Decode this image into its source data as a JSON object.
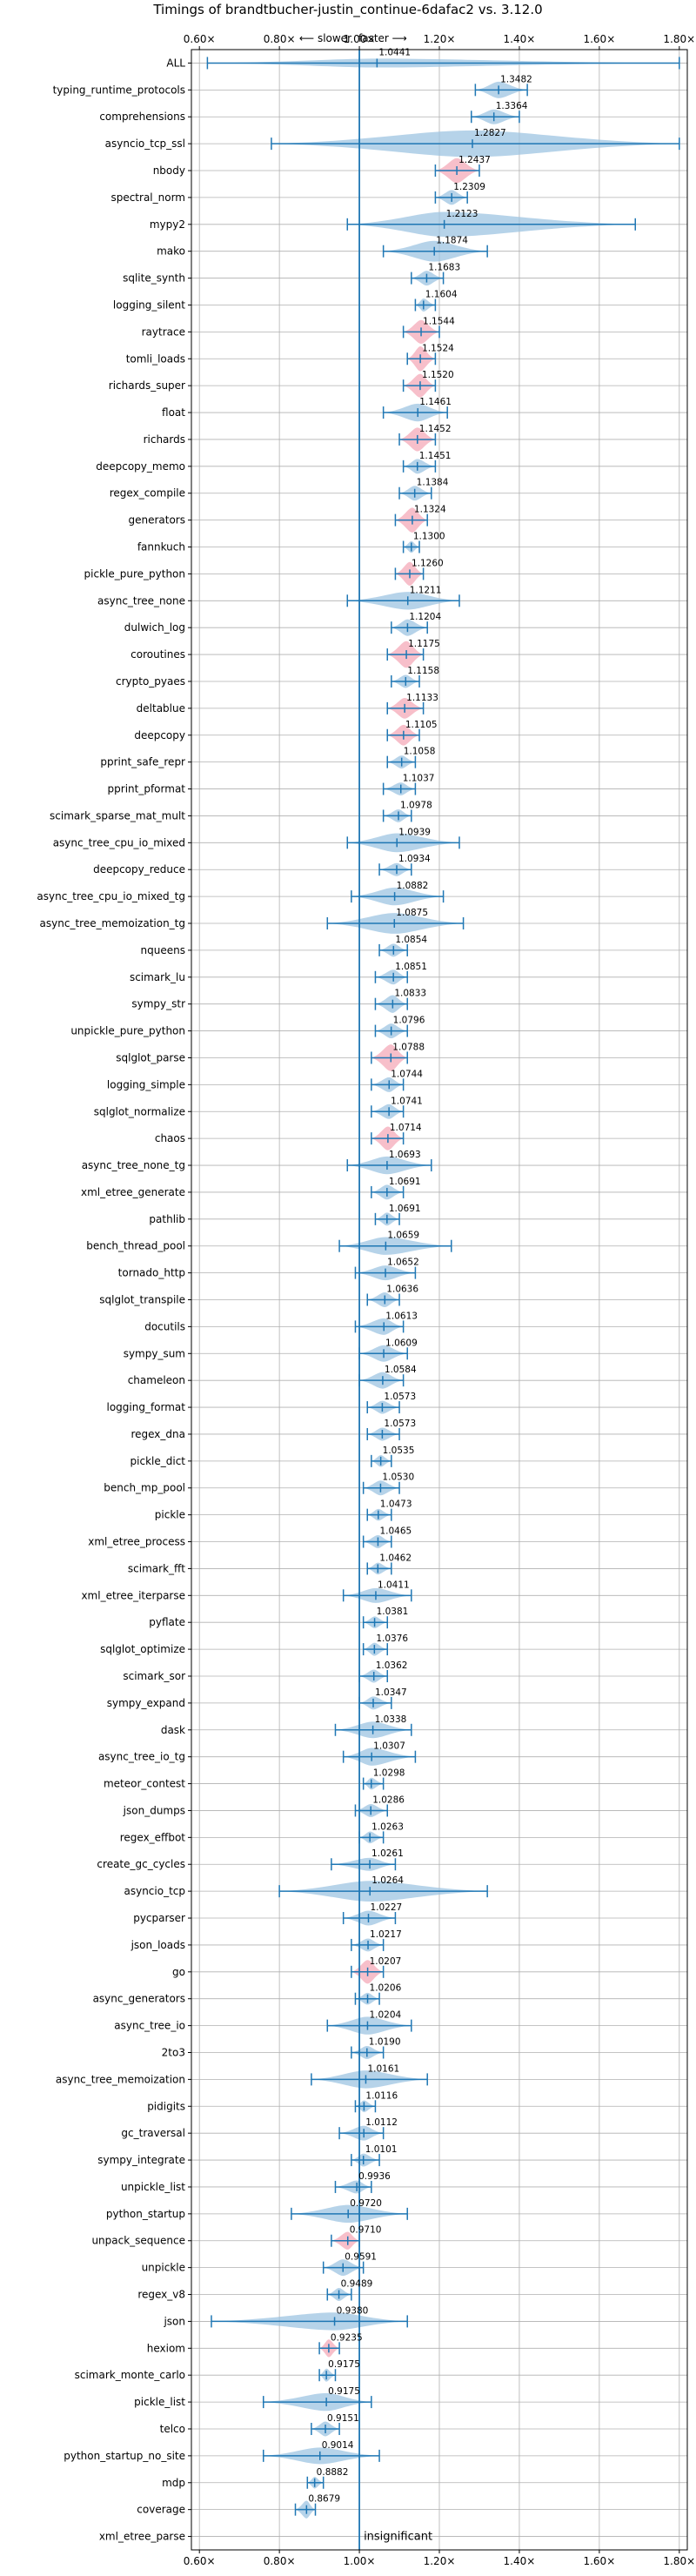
{
  "chart_data": {
    "type": "violin",
    "title": "Timings of brandtbucher-justin_continue-6dafac2 vs. 3.12.0",
    "direction_labels": {
      "slower": "⟵ slower",
      "faster": "faster ⟶"
    },
    "insignificant_label": "insignificant",
    "xlim": [
      0.58,
      1.82
    ],
    "x_ticks": [
      0.6,
      0.8,
      1.0,
      1.2,
      1.4,
      1.6,
      1.8
    ],
    "x_tick_labels": [
      "0.60×",
      "0.80×",
      "1.00×",
      "1.20×",
      "1.40×",
      "1.60×",
      "1.80×"
    ],
    "reference_line": 1.0,
    "grid": true,
    "colors": {
      "violin": "#9ec4e2",
      "significant": "#f4a9b8",
      "line": "#1f77b4",
      "grid": "#b0b0b0"
    },
    "benchmarks": [
      {
        "name": "ALL",
        "value": 1.0441,
        "lo": 0.62,
        "hi": 1.8,
        "width": 0.15,
        "sig": false
      },
      {
        "name": "typing_runtime_protocols",
        "value": 1.3482,
        "lo": 1.29,
        "hi": 1.42,
        "width": 0.28,
        "sig": false
      },
      {
        "name": "comprehensions",
        "value": 1.3364,
        "lo": 1.28,
        "hi": 1.4,
        "width": 0.25,
        "sig": false
      },
      {
        "name": "asyncio_tcp_ssl",
        "value": 1.2827,
        "lo": 0.78,
        "hi": 1.8,
        "width": 0.45,
        "sig": false
      },
      {
        "name": "nbody",
        "value": 1.2437,
        "lo": 1.19,
        "hi": 1.3,
        "width": 0.42,
        "sig": true
      },
      {
        "name": "spectral_norm",
        "value": 1.2309,
        "lo": 1.19,
        "hi": 1.27,
        "width": 0.25,
        "sig": false
      },
      {
        "name": "mypy2",
        "value": 1.2123,
        "lo": 0.97,
        "hi": 1.69,
        "width": 0.42,
        "sig": false
      },
      {
        "name": "mako",
        "value": 1.1874,
        "lo": 1.06,
        "hi": 1.32,
        "width": 0.35,
        "sig": false
      },
      {
        "name": "sqlite_synth",
        "value": 1.1683,
        "lo": 1.13,
        "hi": 1.21,
        "width": 0.25,
        "sig": false
      },
      {
        "name": "logging_silent",
        "value": 1.1604,
        "lo": 1.14,
        "hi": 1.19,
        "width": 0.22,
        "sig": false
      },
      {
        "name": "raytrace",
        "value": 1.1544,
        "lo": 1.11,
        "hi": 1.2,
        "width": 0.4,
        "sig": true
      },
      {
        "name": "tomli_loads",
        "value": 1.1524,
        "lo": 1.12,
        "hi": 1.19,
        "width": 0.42,
        "sig": true
      },
      {
        "name": "richards_super",
        "value": 1.152,
        "lo": 1.11,
        "hi": 1.19,
        "width": 0.4,
        "sig": true
      },
      {
        "name": "float",
        "value": 1.1461,
        "lo": 1.06,
        "hi": 1.22,
        "width": 0.3,
        "sig": false
      },
      {
        "name": "richards",
        "value": 1.1452,
        "lo": 1.1,
        "hi": 1.19,
        "width": 0.4,
        "sig": true
      },
      {
        "name": "deepcopy_memo",
        "value": 1.1451,
        "lo": 1.11,
        "hi": 1.19,
        "width": 0.25,
        "sig": false
      },
      {
        "name": "regex_compile",
        "value": 1.1384,
        "lo": 1.1,
        "hi": 1.18,
        "width": 0.25,
        "sig": false
      },
      {
        "name": "generators",
        "value": 1.1324,
        "lo": 1.09,
        "hi": 1.17,
        "width": 0.42,
        "sig": true
      },
      {
        "name": "fannkuch",
        "value": 1.13,
        "lo": 1.11,
        "hi": 1.15,
        "width": 0.2,
        "sig": false
      },
      {
        "name": "pickle_pure_python",
        "value": 1.126,
        "lo": 1.09,
        "hi": 1.16,
        "width": 0.4,
        "sig": true
      },
      {
        "name": "async_tree_none",
        "value": 1.1211,
        "lo": 0.97,
        "hi": 1.25,
        "width": 0.3,
        "sig": false
      },
      {
        "name": "dulwich_log",
        "value": 1.1204,
        "lo": 1.08,
        "hi": 1.17,
        "width": 0.28,
        "sig": false
      },
      {
        "name": "coroutines",
        "value": 1.1175,
        "lo": 1.07,
        "hi": 1.16,
        "width": 0.45,
        "sig": true
      },
      {
        "name": "crypto_pyaes",
        "value": 1.1158,
        "lo": 1.08,
        "hi": 1.15,
        "width": 0.22,
        "sig": false
      },
      {
        "name": "deltablue",
        "value": 1.1133,
        "lo": 1.07,
        "hi": 1.16,
        "width": 0.35,
        "sig": true
      },
      {
        "name": "deepcopy",
        "value": 1.1105,
        "lo": 1.07,
        "hi": 1.15,
        "width": 0.35,
        "sig": true
      },
      {
        "name": "pprint_safe_repr",
        "value": 1.1058,
        "lo": 1.07,
        "hi": 1.14,
        "width": 0.22,
        "sig": false
      },
      {
        "name": "pprint_pformat",
        "value": 1.1037,
        "lo": 1.06,
        "hi": 1.14,
        "width": 0.22,
        "sig": false
      },
      {
        "name": "scimark_sparse_mat_mult",
        "value": 1.0978,
        "lo": 1.06,
        "hi": 1.13,
        "width": 0.22,
        "sig": false
      },
      {
        "name": "async_tree_cpu_io_mixed",
        "value": 1.0939,
        "lo": 0.97,
        "hi": 1.25,
        "width": 0.32,
        "sig": false
      },
      {
        "name": "deepcopy_reduce",
        "value": 1.0934,
        "lo": 1.05,
        "hi": 1.13,
        "width": 0.22,
        "sig": false
      },
      {
        "name": "async_tree_cpu_io_mixed_tg",
        "value": 1.0882,
        "lo": 0.98,
        "hi": 1.21,
        "width": 0.3,
        "sig": false
      },
      {
        "name": "async_tree_memoization_tg",
        "value": 1.0875,
        "lo": 0.92,
        "hi": 1.26,
        "width": 0.35,
        "sig": false
      },
      {
        "name": "nqueens",
        "value": 1.0854,
        "lo": 1.05,
        "hi": 1.12,
        "width": 0.22,
        "sig": false
      },
      {
        "name": "scimark_lu",
        "value": 1.0851,
        "lo": 1.04,
        "hi": 1.12,
        "width": 0.25,
        "sig": false
      },
      {
        "name": "sympy_str",
        "value": 1.0833,
        "lo": 1.04,
        "hi": 1.12,
        "width": 0.3,
        "sig": false
      },
      {
        "name": "unpickle_pure_python",
        "value": 1.0796,
        "lo": 1.04,
        "hi": 1.12,
        "width": 0.25,
        "sig": false
      },
      {
        "name": "sqlglot_parse",
        "value": 1.0788,
        "lo": 1.03,
        "hi": 1.12,
        "width": 0.45,
        "sig": true
      },
      {
        "name": "logging_simple",
        "value": 1.0744,
        "lo": 1.03,
        "hi": 1.11,
        "width": 0.25,
        "sig": false
      },
      {
        "name": "sqlglot_normalize",
        "value": 1.0741,
        "lo": 1.03,
        "hi": 1.11,
        "width": 0.25,
        "sig": false
      },
      {
        "name": "chaos",
        "value": 1.0714,
        "lo": 1.03,
        "hi": 1.11,
        "width": 0.4,
        "sig": true
      },
      {
        "name": "async_tree_none_tg",
        "value": 1.0693,
        "lo": 0.97,
        "hi": 1.18,
        "width": 0.3,
        "sig": false
      },
      {
        "name": "xml_etree_generate",
        "value": 1.0691,
        "lo": 1.03,
        "hi": 1.11,
        "width": 0.25,
        "sig": false
      },
      {
        "name": "pathlib",
        "value": 1.0691,
        "lo": 1.04,
        "hi": 1.1,
        "width": 0.22,
        "sig": false
      },
      {
        "name": "bench_thread_pool",
        "value": 1.0659,
        "lo": 0.95,
        "hi": 1.23,
        "width": 0.3,
        "sig": false
      },
      {
        "name": "tornado_http",
        "value": 1.0652,
        "lo": 0.99,
        "hi": 1.14,
        "width": 0.25,
        "sig": false
      },
      {
        "name": "sqlglot_transpile",
        "value": 1.0636,
        "lo": 1.02,
        "hi": 1.1,
        "width": 0.25,
        "sig": false
      },
      {
        "name": "docutils",
        "value": 1.0613,
        "lo": 0.99,
        "hi": 1.11,
        "width": 0.28,
        "sig": false
      },
      {
        "name": "sympy_sum",
        "value": 1.0609,
        "lo": 1.0,
        "hi": 1.12,
        "width": 0.28,
        "sig": false
      },
      {
        "name": "chameleon",
        "value": 1.0584,
        "lo": 1.0,
        "hi": 1.11,
        "width": 0.28,
        "sig": false
      },
      {
        "name": "logging_format",
        "value": 1.0573,
        "lo": 1.02,
        "hi": 1.1,
        "width": 0.22,
        "sig": false
      },
      {
        "name": "regex_dna",
        "value": 1.0573,
        "lo": 1.02,
        "hi": 1.1,
        "width": 0.22,
        "sig": false
      },
      {
        "name": "pickle_dict",
        "value": 1.0535,
        "lo": 1.03,
        "hi": 1.08,
        "width": 0.2,
        "sig": false
      },
      {
        "name": "bench_mp_pool",
        "value": 1.053,
        "lo": 1.01,
        "hi": 1.1,
        "width": 0.25,
        "sig": false
      },
      {
        "name": "pickle",
        "value": 1.0473,
        "lo": 1.02,
        "hi": 1.08,
        "width": 0.2,
        "sig": false
      },
      {
        "name": "xml_etree_process",
        "value": 1.0465,
        "lo": 1.01,
        "hi": 1.08,
        "width": 0.22,
        "sig": false
      },
      {
        "name": "scimark_fft",
        "value": 1.0462,
        "lo": 1.02,
        "hi": 1.08,
        "width": 0.2,
        "sig": false
      },
      {
        "name": "xml_etree_iterparse",
        "value": 1.0411,
        "lo": 0.96,
        "hi": 1.13,
        "width": 0.25,
        "sig": false
      },
      {
        "name": "pyflate",
        "value": 1.0381,
        "lo": 1.01,
        "hi": 1.07,
        "width": 0.2,
        "sig": false
      },
      {
        "name": "sqlglot_optimize",
        "value": 1.0376,
        "lo": 1.01,
        "hi": 1.07,
        "width": 0.22,
        "sig": false
      },
      {
        "name": "scimark_sor",
        "value": 1.0362,
        "lo": 1.0,
        "hi": 1.07,
        "width": 0.22,
        "sig": false
      },
      {
        "name": "sympy_expand",
        "value": 1.0347,
        "lo": 1.0,
        "hi": 1.08,
        "width": 0.22,
        "sig": false
      },
      {
        "name": "dask",
        "value": 1.0338,
        "lo": 0.94,
        "hi": 1.13,
        "width": 0.28,
        "sig": false
      },
      {
        "name": "async_tree_io_tg",
        "value": 1.0307,
        "lo": 0.96,
        "hi": 1.14,
        "width": 0.3,
        "sig": false
      },
      {
        "name": "meteor_contest",
        "value": 1.0298,
        "lo": 1.01,
        "hi": 1.06,
        "width": 0.2,
        "sig": false
      },
      {
        "name": "json_dumps",
        "value": 1.0286,
        "lo": 0.99,
        "hi": 1.07,
        "width": 0.22,
        "sig": false
      },
      {
        "name": "regex_effbot",
        "value": 1.0263,
        "lo": 1.0,
        "hi": 1.06,
        "width": 0.2,
        "sig": false
      },
      {
        "name": "create_gc_cycles",
        "value": 1.0261,
        "lo": 0.93,
        "hi": 1.09,
        "width": 0.22,
        "sig": false
      },
      {
        "name": "asyncio_tcp",
        "value": 1.0264,
        "lo": 0.8,
        "hi": 1.32,
        "width": 0.35,
        "sig": false
      },
      {
        "name": "pycparser",
        "value": 1.0227,
        "lo": 0.96,
        "hi": 1.09,
        "width": 0.25,
        "sig": false
      },
      {
        "name": "json_loads",
        "value": 1.0217,
        "lo": 0.98,
        "hi": 1.06,
        "width": 0.22,
        "sig": false
      },
      {
        "name": "go",
        "value": 1.0207,
        "lo": 0.98,
        "hi": 1.06,
        "width": 0.4,
        "sig": true
      },
      {
        "name": "async_generators",
        "value": 1.0206,
        "lo": 0.99,
        "hi": 1.05,
        "width": 0.2,
        "sig": false
      },
      {
        "name": "async_tree_io",
        "value": 1.0204,
        "lo": 0.92,
        "hi": 1.13,
        "width": 0.3,
        "sig": false
      },
      {
        "name": "2to3",
        "value": 1.019,
        "lo": 0.98,
        "hi": 1.06,
        "width": 0.22,
        "sig": false
      },
      {
        "name": "async_tree_memoization",
        "value": 1.0161,
        "lo": 0.88,
        "hi": 1.17,
        "width": 0.3,
        "sig": false
      },
      {
        "name": "pidigits",
        "value": 1.0116,
        "lo": 0.99,
        "hi": 1.04,
        "width": 0.2,
        "sig": false
      },
      {
        "name": "gc_traversal",
        "value": 1.0112,
        "lo": 0.95,
        "hi": 1.06,
        "width": 0.25,
        "sig": false
      },
      {
        "name": "sympy_integrate",
        "value": 1.0101,
        "lo": 0.98,
        "hi": 1.05,
        "width": 0.22,
        "sig": false
      },
      {
        "name": "unpickle_list",
        "value": 0.9936,
        "lo": 0.94,
        "hi": 1.03,
        "width": 0.22,
        "sig": false
      },
      {
        "name": "python_startup",
        "value": 0.972,
        "lo": 0.83,
        "hi": 1.12,
        "width": 0.3,
        "sig": false
      },
      {
        "name": "unpack_sequence",
        "value": 0.971,
        "lo": 0.93,
        "hi": 1.0,
        "width": 0.3,
        "sig": true
      },
      {
        "name": "unpickle",
        "value": 0.9591,
        "lo": 0.91,
        "hi": 1.01,
        "width": 0.28,
        "sig": false
      },
      {
        "name": "regex_v8",
        "value": 0.9489,
        "lo": 0.92,
        "hi": 0.98,
        "width": 0.22,
        "sig": false
      },
      {
        "name": "json",
        "value": 0.938,
        "lo": 0.63,
        "hi": 1.12,
        "width": 0.3,
        "sig": false
      },
      {
        "name": "hexiom",
        "value": 0.9235,
        "lo": 0.9,
        "hi": 0.95,
        "width": 0.3,
        "sig": true
      },
      {
        "name": "scimark_monte_carlo",
        "value": 0.9175,
        "lo": 0.9,
        "hi": 0.94,
        "width": 0.22,
        "sig": false
      },
      {
        "name": "pickle_list",
        "value": 0.9175,
        "lo": 0.76,
        "hi": 1.03,
        "width": 0.3,
        "sig": false
      },
      {
        "name": "telco",
        "value": 0.9151,
        "lo": 0.88,
        "hi": 0.95,
        "width": 0.25,
        "sig": false
      },
      {
        "name": "python_startup_no_site",
        "value": 0.9014,
        "lo": 0.76,
        "hi": 1.05,
        "width": 0.28,
        "sig": false
      },
      {
        "name": "mdp",
        "value": 0.8882,
        "lo": 0.87,
        "hi": 0.91,
        "width": 0.2,
        "sig": false
      },
      {
        "name": "coverage",
        "value": 0.8679,
        "lo": 0.84,
        "hi": 0.89,
        "width": 0.3,
        "sig": false
      },
      {
        "name": "xml_etree_parse",
        "value": null,
        "lo": null,
        "hi": null,
        "width": 0,
        "sig": false
      }
    ]
  }
}
